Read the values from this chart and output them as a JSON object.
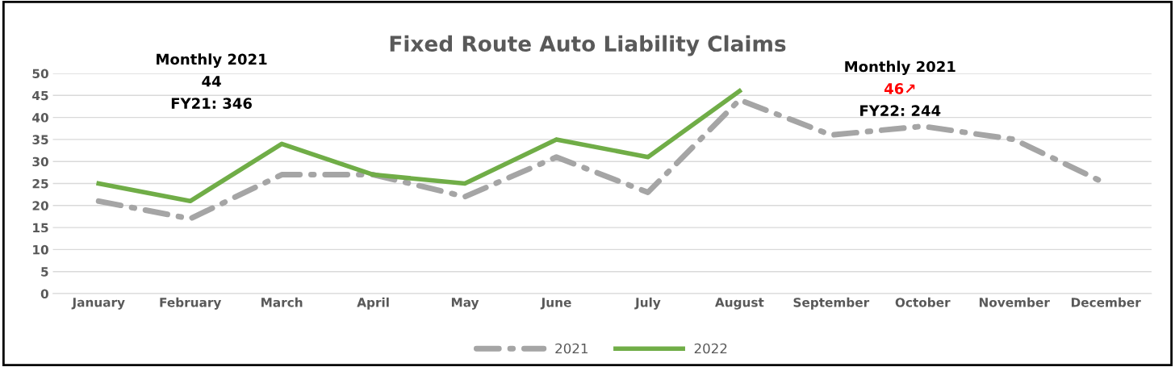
{
  "chart_data": {
    "type": "line",
    "title": "Fixed Route Auto Liability Claims",
    "categories": [
      "January",
      "February",
      "March",
      "April",
      "May",
      "June",
      "July",
      "August",
      "September",
      "October",
      "November",
      "December"
    ],
    "series": [
      {
        "name": "2021",
        "color": "#a5a5a5",
        "line_style": "dashed",
        "values": [
          21,
          17,
          27,
          27,
          22,
          31,
          23,
          44,
          36,
          38,
          35,
          25
        ]
      },
      {
        "name": "2022",
        "color": "#70ad47",
        "line_style": "solid",
        "values": [
          25,
          21,
          34,
          27,
          25,
          35,
          31,
          46,
          null,
          null,
          null,
          null
        ]
      }
    ],
    "ylim": [
      0,
      50
    ],
    "yticks": [
      0,
      5,
      10,
      15,
      20,
      25,
      30,
      35,
      40,
      45,
      50
    ],
    "grid": "y",
    "legend": "bottom",
    "marker": "none",
    "annotations": [
      "Monthly 2021",
      "44",
      "FY21: 346",
      "Monthly 2021",
      "46↗",
      "FY22: 244"
    ]
  }
}
